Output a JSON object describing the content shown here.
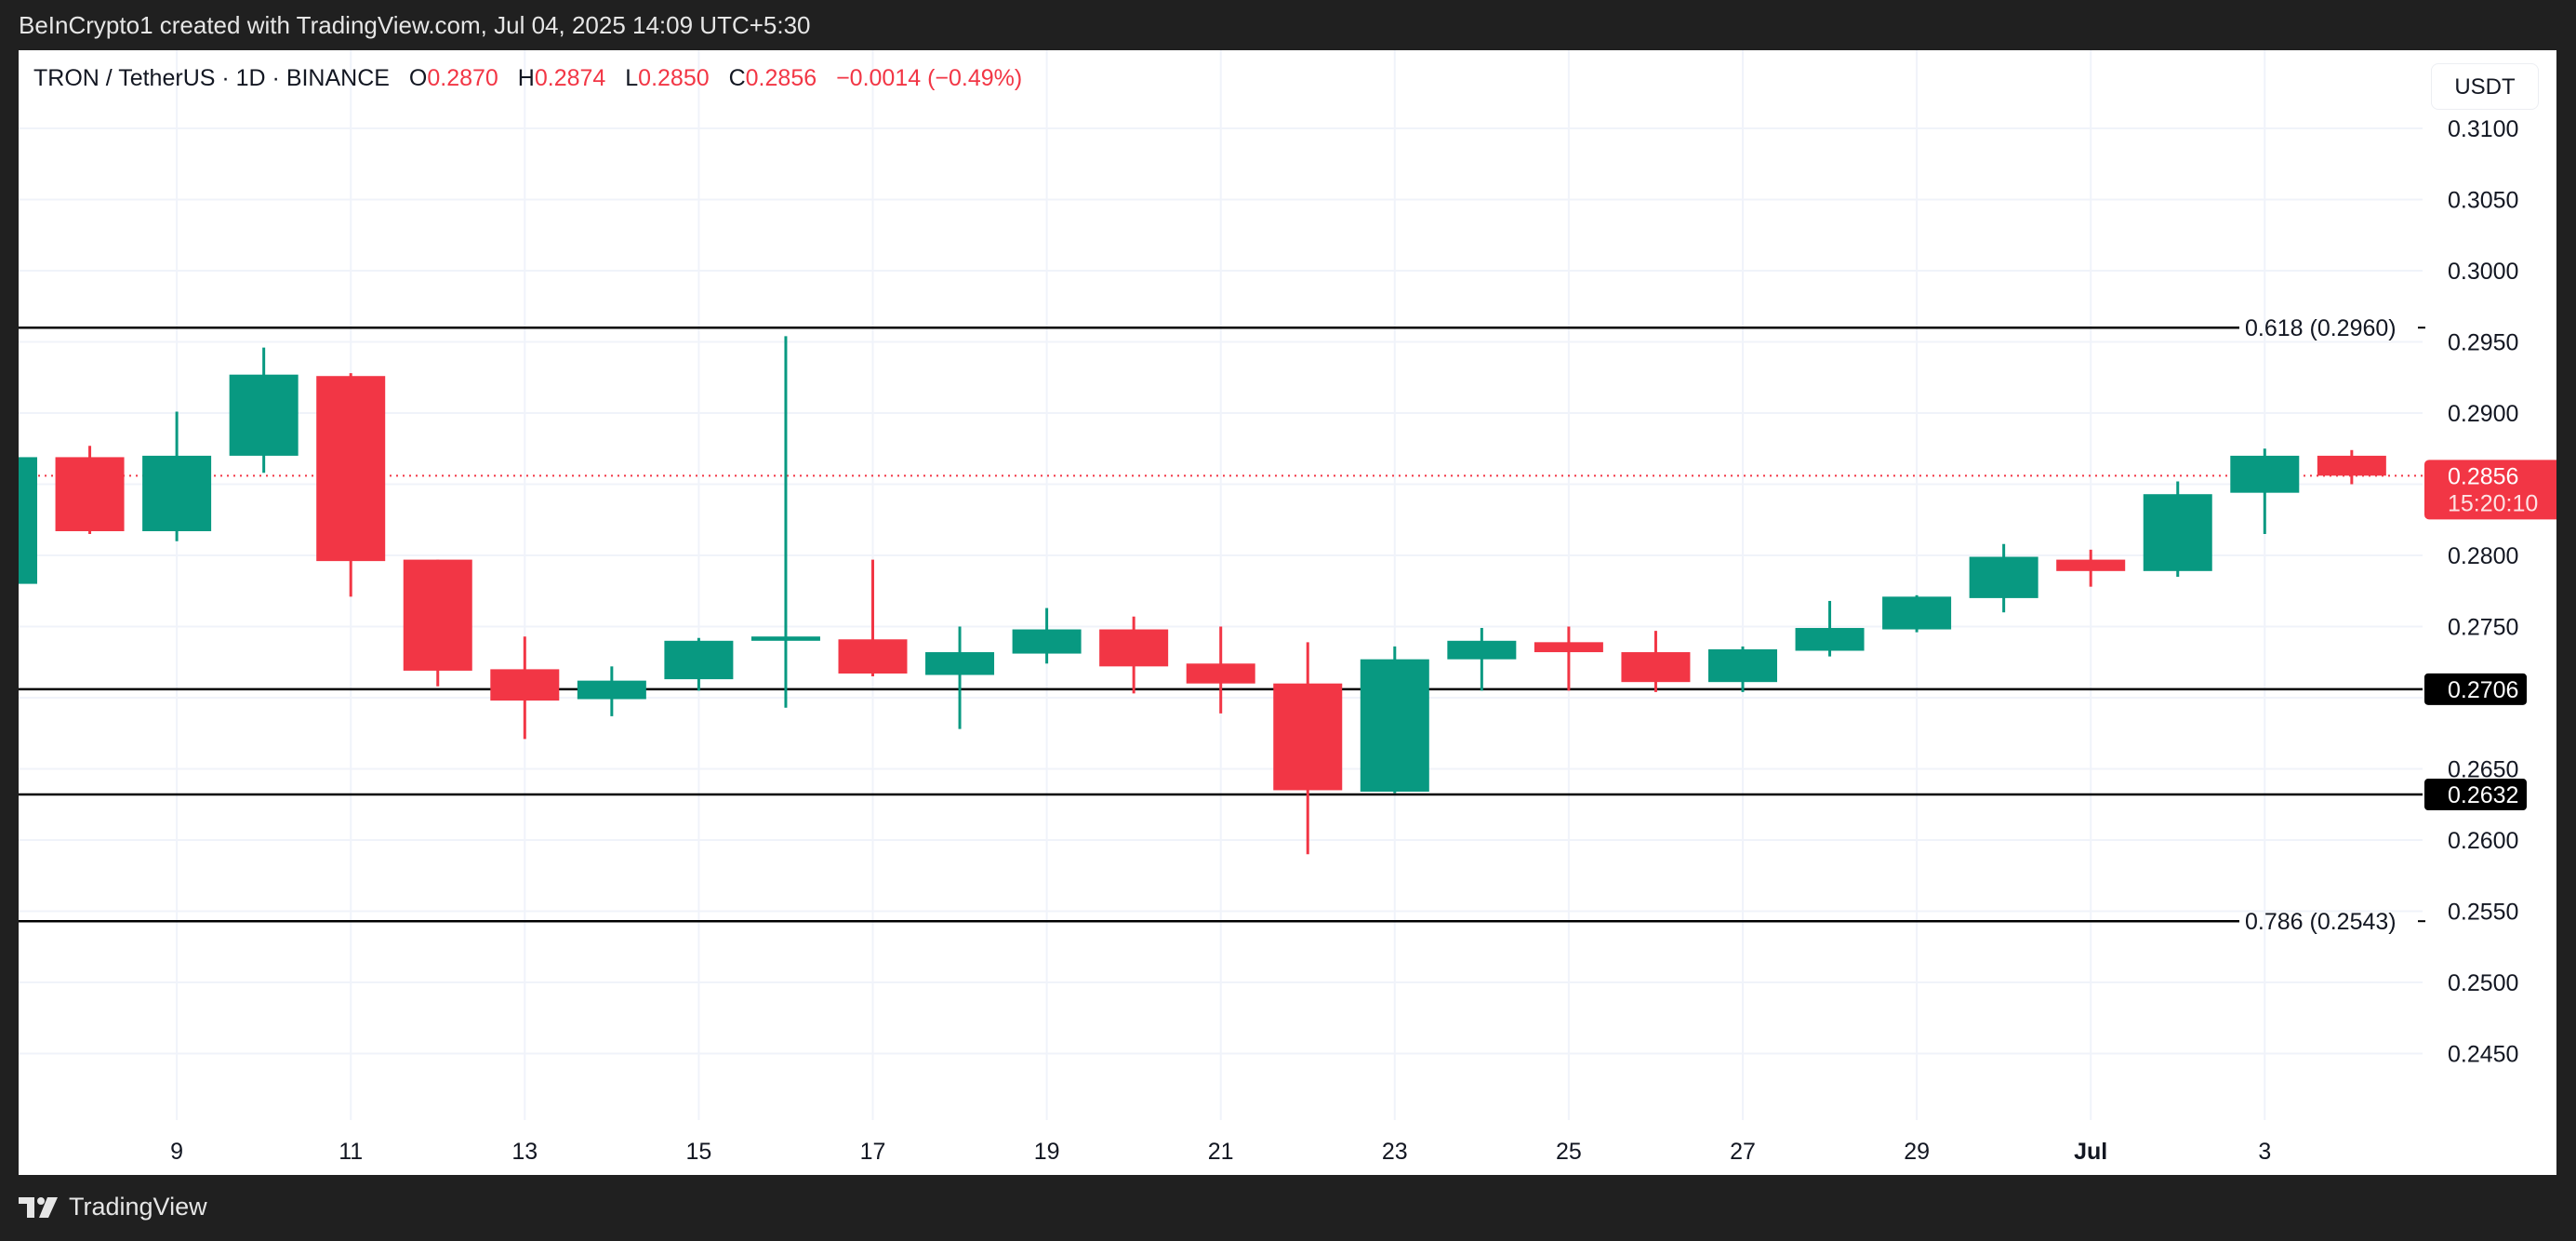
{
  "header": {
    "attribution": "BeInCrypto1 created with TradingView.com, Jul 04, 2025 14:09 UTC+5:30"
  },
  "legend": {
    "symbol": "TRON / TetherUS · 1D · BINANCE",
    "o_label": "O",
    "o_value": "0.2870",
    "h_label": "H",
    "h_value": "0.2874",
    "l_label": "L",
    "l_value": "0.2850",
    "c_label": "C",
    "c_value": "0.2856",
    "change": "−0.0014 (−0.49%)"
  },
  "price_axis": {
    "currency_button": "USDT",
    "ticks": [
      "0.3100",
      "0.3050",
      "0.3000",
      "0.2950",
      "0.2900",
      "0.2800",
      "0.2750",
      "0.2650",
      "0.2600",
      "0.2550",
      "0.2500",
      "0.2450"
    ],
    "last_price_label": "0.2856",
    "countdown": "15:20:10",
    "level_labels": [
      "0.2706",
      "0.2632"
    ]
  },
  "time_axis": {
    "ticks": [
      "9",
      "11",
      "13",
      "15",
      "17",
      "19",
      "21",
      "23",
      "25",
      "27",
      "29",
      "Jul",
      "3"
    ]
  },
  "footer": {
    "brand": "TradingView"
  },
  "colors": {
    "up": "#089981",
    "down": "#f23645",
    "grid": "#f0f3fa",
    "text": "#131722"
  },
  "chart_data": {
    "type": "candlestick",
    "title": "TRON / TetherUS · 1D · BINANCE",
    "xlabel": "",
    "ylabel": "USDT",
    "ylim": [
      0.241,
      0.3135
    ],
    "grid": true,
    "categories": [
      "Jun 7",
      "Jun 8",
      "Jun 9",
      "Jun 10",
      "Jun 11",
      "Jun 12",
      "Jun 13",
      "Jun 14",
      "Jun 15",
      "Jun 16",
      "Jun 17",
      "Jun 18",
      "Jun 19",
      "Jun 20",
      "Jun 21",
      "Jun 22",
      "Jun 23",
      "Jun 24",
      "Jun 25",
      "Jun 26",
      "Jun 27",
      "Jun 28",
      "Jun 29",
      "Jun 30",
      "Jul 1",
      "Jul 2",
      "Jul 3",
      "Jul 4"
    ],
    "ohlc": [
      [
        0.278,
        0.2872,
        0.2775,
        0.2869
      ],
      [
        0.2869,
        0.2877,
        0.2815,
        0.2817
      ],
      [
        0.2817,
        0.2901,
        0.281,
        0.287
      ],
      [
        0.287,
        0.2946,
        0.2858,
        0.2927
      ],
      [
        0.2926,
        0.2928,
        0.2771,
        0.2796
      ],
      [
        0.2797,
        0.2797,
        0.2708,
        0.2719
      ],
      [
        0.272,
        0.2743,
        0.2671,
        0.2698
      ],
      [
        0.2699,
        0.2722,
        0.2687,
        0.2712
      ],
      [
        0.2713,
        0.2742,
        0.2705,
        0.274
      ],
      [
        0.274,
        0.2954,
        0.2693,
        0.2743
      ],
      [
        0.2741,
        0.2797,
        0.2715,
        0.2717
      ],
      [
        0.2716,
        0.275,
        0.2678,
        0.2732
      ],
      [
        0.2731,
        0.2763,
        0.2724,
        0.2748
      ],
      [
        0.2748,
        0.2757,
        0.2703,
        0.2722
      ],
      [
        0.2724,
        0.275,
        0.2689,
        0.271
      ],
      [
        0.271,
        0.2739,
        0.259,
        0.2635
      ],
      [
        0.2634,
        0.2736,
        0.2633,
        0.2727
      ],
      [
        0.2727,
        0.2749,
        0.2705,
        0.274
      ],
      [
        0.2739,
        0.275,
        0.2705,
        0.2732
      ],
      [
        0.2732,
        0.2747,
        0.2704,
        0.2711
      ],
      [
        0.2711,
        0.2736,
        0.2704,
        0.2734
      ],
      [
        0.2733,
        0.2768,
        0.2729,
        0.2749
      ],
      [
        0.2748,
        0.2772,
        0.2746,
        0.2771
      ],
      [
        0.277,
        0.2808,
        0.276,
        0.2799
      ],
      [
        0.2797,
        0.2804,
        0.2778,
        0.2789
      ],
      [
        0.2789,
        0.2852,
        0.2785,
        0.2843
      ],
      [
        0.2844,
        0.2875,
        0.2815,
        0.287
      ],
      [
        0.287,
        0.2874,
        0.285,
        0.2856
      ]
    ],
    "annotations": [
      {
        "type": "fib",
        "label": "0.618 (0.2960)",
        "price": 0.296
      },
      {
        "type": "fib",
        "label": "0.786 (0.2543)",
        "price": 0.2543
      },
      {
        "type": "hline",
        "price": 0.2706,
        "label": "0.2706"
      },
      {
        "type": "hline",
        "price": 0.2632,
        "label": "0.2632"
      },
      {
        "type": "last_price",
        "price": 0.2856,
        "label": "0.2856"
      }
    ]
  }
}
